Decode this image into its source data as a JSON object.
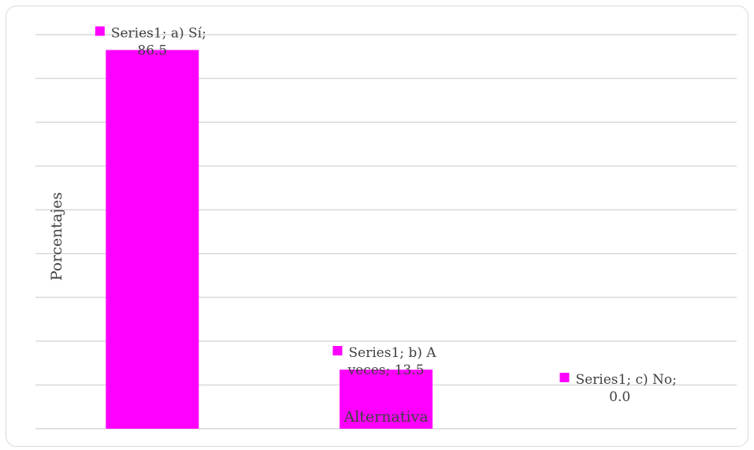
{
  "chart_data": {
    "type": "bar",
    "categories": [
      "a) Sí",
      "b) A veces",
      "c) No"
    ],
    "series": [
      {
        "name": "Series1",
        "values": [
          86.5,
          13.5,
          0.0
        ]
      }
    ],
    "data_labels": [
      [
        "Series1; a) Sí;",
        "86.5"
      ],
      [
        "Series1; b) A",
        "veces; 13.5"
      ],
      [
        "Series1; c) No;",
        "0.0"
      ]
    ],
    "title": "",
    "xlabel": "Alternativa",
    "ylabel": "Porcentajes",
    "ylim": [
      0,
      90
    ],
    "gridline_step": 10,
    "grid": true,
    "color": "#ff00ff",
    "tick_labels_visible": false
  }
}
